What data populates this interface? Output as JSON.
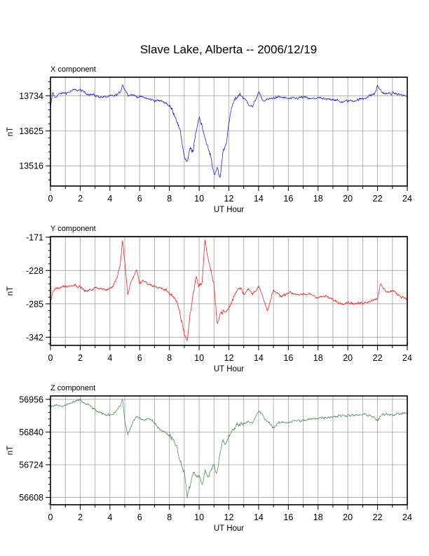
{
  "chart_data": {
    "type": "line",
    "title": "Slave Lake, Alberta -- 2006/12/19",
    "panels": [
      {
        "label": "X component",
        "ylabel": "nT",
        "xlabel": "UT Hour",
        "color": "#0000ff",
        "xlim": [
          0,
          24
        ],
        "ylim": [
          13453,
          13792
        ],
        "yticks": [
          13516,
          13625,
          13734
        ],
        "xticks": [
          0,
          2,
          4,
          6,
          8,
          10,
          12,
          14,
          16,
          18,
          20,
          22,
          24
        ],
        "series": [
          {
            "x": [
              0,
              0.15,
              0.3,
              0.5,
              0.8,
              1.2,
              1.6,
              2.0,
              2.4,
              2.8,
              3.2,
              3.6,
              4.0,
              4.4,
              4.7,
              4.85,
              5.0,
              5.2,
              5.5,
              5.8,
              6.2,
              6.6,
              7.0,
              7.4,
              7.8,
              8.2,
              8.5,
              8.8,
              9.0,
              9.2,
              9.4,
              9.6,
              9.8,
              10.0,
              10.2,
              10.4,
              10.6,
              10.8,
              11.0,
              11.2,
              11.4,
              11.6,
              11.8,
              12.0,
              12.2,
              12.4,
              12.7,
              13.0,
              13.3,
              13.6,
              14.0,
              14.3,
              14.6,
              15.0,
              15.5,
              16.0,
              16.5,
              17.0,
              17.5,
              18.0,
              18.5,
              19.0,
              19.5,
              20.0,
              20.5,
              21.0,
              21.5,
              21.8,
              22.0,
              22.3,
              22.6,
              23.0,
              23.5,
              24.0
            ],
            "y": [
              13695,
              13745,
              13728,
              13738,
              13742,
              13745,
              13752,
              13752,
              13742,
              13738,
              13732,
              13730,
              13732,
              13735,
              13745,
              13770,
              13755,
              13738,
              13738,
              13732,
              13730,
              13724,
              13720,
              13718,
              13712,
              13690,
              13660,
              13605,
              13545,
              13525,
              13570,
              13560,
              13625,
              13670,
              13640,
              13605,
              13570,
              13540,
              13490,
              13510,
              13475,
              13560,
              13585,
              13645,
              13700,
              13720,
              13740,
              13728,
              13710,
              13700,
              13745,
              13718,
              13722,
              13728,
              13730,
              13725,
              13726,
              13730,
              13724,
              13728,
              13722,
              13725,
              13715,
              13718,
              13720,
              13725,
              13735,
              13740,
              13765,
              13745,
              13740,
              13742,
              13738,
              13732
            ]
          }
        ]
      },
      {
        "label": "Y component",
        "ylabel": "nT",
        "xlabel": "UT Hour",
        "color": "#ff0000",
        "xlim": [
          0,
          24
        ],
        "ylim": [
          -356,
          -170
        ],
        "yticks": [
          -342,
          -285,
          -228,
          -171
        ],
        "xticks": [
          0,
          2,
          4,
          6,
          8,
          10,
          12,
          14,
          16,
          18,
          20,
          22,
          24
        ],
        "series": [
          {
            "x": [
              0,
              0.2,
              0.5,
              0.8,
              1.2,
              1.6,
              2.0,
              2.4,
              2.6,
              3.0,
              3.4,
              3.8,
              4.2,
              4.5,
              4.7,
              4.85,
              5.0,
              5.2,
              5.4,
              5.6,
              5.8,
              6.0,
              6.2,
              6.6,
              7.0,
              7.4,
              7.8,
              8.2,
              8.6,
              9.0,
              9.2,
              9.4,
              9.6,
              9.8,
              10.0,
              10.2,
              10.4,
              10.6,
              10.8,
              11.0,
              11.2,
              11.4,
              11.6,
              11.8,
              12.0,
              12.2,
              12.5,
              12.8,
              13.0,
              13.3,
              13.6,
              14.0,
              14.3,
              14.6,
              15.0,
              15.3,
              15.6,
              16.0,
              16.5,
              17.0,
              17.5,
              18.0,
              18.5,
              19.0,
              19.5,
              20.0,
              20.5,
              21.0,
              21.5,
              22.0,
              22.2,
              22.5,
              22.8,
              23.0,
              23.3,
              23.6,
              24.0
            ],
            "y": [
              -282,
              -262,
              -258,
              -255,
              -255,
              -252,
              -256,
              -264,
              -262,
              -258,
              -258,
              -262,
              -255,
              -238,
              -215,
              -176,
              -215,
              -268,
              -248,
              -238,
              -225,
              -252,
              -245,
              -252,
              -255,
              -258,
              -262,
              -270,
              -290,
              -335,
              -348,
              -302,
              -268,
              -238,
              -255,
              -248,
              -175,
              -208,
              -228,
              -255,
              -318,
              -302,
              -298,
              -300,
              -292,
              -282,
              -262,
              -255,
              -268,
              -260,
              -268,
              -255,
              -275,
              -298,
              -262,
              -268,
              -272,
              -265,
              -268,
              -270,
              -268,
              -274,
              -272,
              -278,
              -284,
              -282,
              -285,
              -283,
              -280,
              -275,
              -252,
              -262,
              -265,
              -262,
              -268,
              -272,
              -276
            ]
          }
        ]
      },
      {
        "label": "Z component",
        "ylabel": "nT",
        "xlabel": "UT Hour",
        "color": "#3f7f4f",
        "xlim": [
          0,
          24
        ],
        "ylim": [
          56582,
          56968
        ],
        "yticks": [
          56608,
          56724,
          56840,
          56956
        ],
        "xticks": [
          0,
          2,
          4,
          6,
          8,
          10,
          12,
          14,
          16,
          18,
          20,
          22,
          24
        ],
        "series": [
          {
            "x": [
              0,
              0.4,
              0.8,
              1.2,
              1.6,
              2.0,
              2.3,
              2.6,
              3.0,
              3.4,
              3.8,
              4.2,
              4.5,
              4.7,
              4.85,
              5.0,
              5.2,
              5.4,
              5.6,
              5.8,
              6.0,
              6.3,
              6.6,
              7.0,
              7.4,
              7.8,
              8.2,
              8.5,
              8.7,
              9.0,
              9.2,
              9.4,
              9.6,
              9.8,
              10.0,
              10.2,
              10.4,
              10.6,
              10.8,
              11.0,
              11.2,
              11.4,
              11.6,
              11.8,
              12.0,
              12.3,
              12.6,
              13.0,
              13.3,
              13.6,
              14.0,
              14.2,
              14.5,
              14.8,
              15.0,
              15.3,
              15.6,
              16.0,
              16.5,
              17.0,
              17.5,
              18.0,
              18.5,
              19.0,
              19.5,
              20.0,
              20.5,
              21.0,
              21.5,
              22.0,
              22.3,
              22.6,
              23.0,
              23.5,
              24.0
            ],
            "y": [
              56930,
              56935,
              56930,
              56940,
              56945,
              56955,
              56940,
              56935,
              56918,
              56905,
              56900,
              56905,
              56920,
              56935,
              56955,
              56880,
              56828,
              56855,
              56880,
              56895,
              56890,
              56880,
              56890,
              56870,
              56850,
              56835,
              56820,
              56790,
              56740,
              56700,
              56612,
              56650,
              56700,
              56680,
              56690,
              56650,
              56700,
              56680,
              56705,
              56725,
              56690,
              56760,
              56810,
              56795,
              56830,
              56845,
              56870,
              56870,
              56880,
              56870,
              56915,
              56905,
              56880,
              56870,
              56855,
              56870,
              56875,
              56875,
              56880,
              56880,
              56885,
              56890,
              56892,
              56895,
              56898,
              56900,
              56898,
              56902,
              56900,
              56880,
              56900,
              56905,
              56902,
              56905,
              56908
            ]
          }
        ]
      }
    ]
  }
}
